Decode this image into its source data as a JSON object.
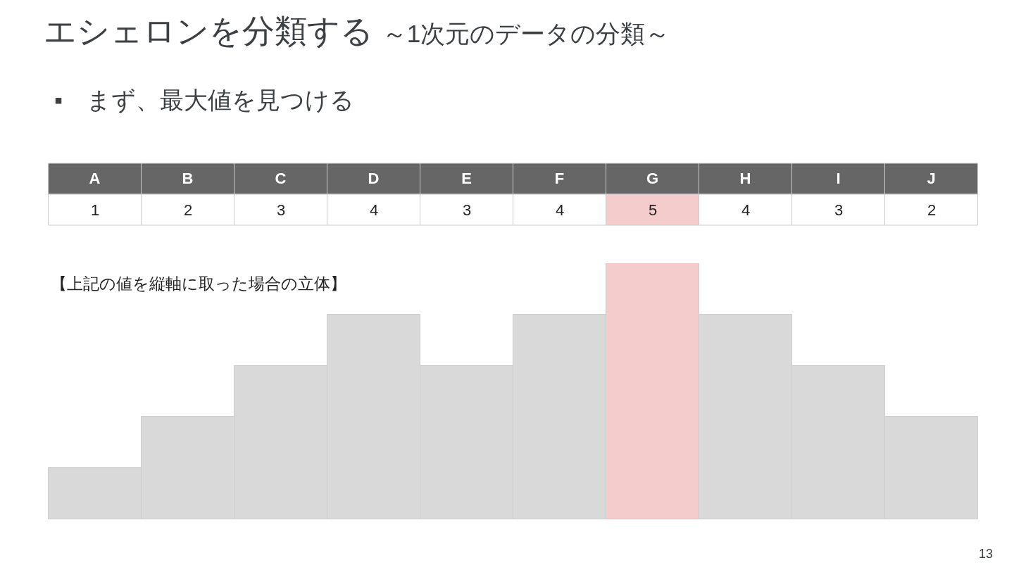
{
  "chart_data": {
    "type": "bar",
    "title": "エシェロンを分類する",
    "subtitle": "～1次元のデータの分類～",
    "annotations": [
      "▪　まず、最大値を見つける",
      "【上記の値を縦軸に取った場合の立体】",
      "13"
    ],
    "categories": [
      "A",
      "B",
      "C",
      "D",
      "E",
      "F",
      "G",
      "H",
      "I",
      "J"
    ],
    "values": [
      1,
      2,
      3,
      4,
      3,
      4,
      5,
      4,
      3,
      2
    ],
    "colors": [
      "#d9d9d9",
      "#d9d9d9",
      "#d9d9d9",
      "#d9d9d9",
      "#d9d9d9",
      "#d9d9d9",
      "#f4cccc",
      "#d9d9d9",
      "#d9d9d9",
      "#d9d9d9"
    ],
    "data_labels": true,
    "tick_labels": "x"
  }
}
